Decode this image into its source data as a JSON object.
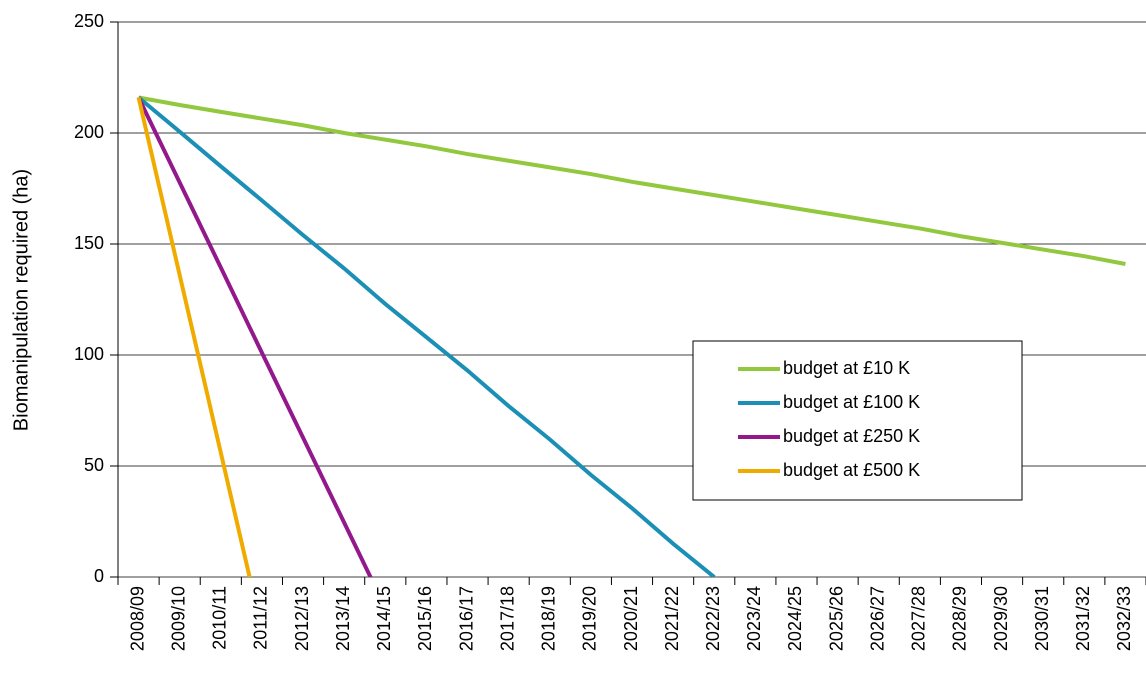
{
  "chart_data": {
    "type": "line",
    "y_label": "Biomanipulation required (ha)",
    "categories": [
      "2008/09",
      "2009/10",
      "2010/11",
      "2011/12",
      "2012/13",
      "2013/14",
      "2014/15",
      "2015/16",
      "2016/17",
      "2017/18",
      "2018/19",
      "2019/20",
      "2020/21",
      "2021/22",
      "2022/23",
      "2023/24",
      "2024/25",
      "2025/26",
      "2026/27",
      "2027/28",
      "2028/29",
      "2029/30",
      "2030/31",
      "2031/32",
      "2032/33"
    ],
    "series": [
      {
        "name": "budget at £10 K",
        "color": "#92c83e",
        "values": [
          216,
          212.6,
          209.5,
          206.5,
          203.5,
          200,
          197,
          194,
          190.5,
          187.5,
          184.5,
          181.5,
          178,
          175,
          172,
          169,
          166,
          163,
          160,
          157,
          153.5,
          150.5,
          147.5,
          144.5,
          141
        ]
      },
      {
        "name": "budget at £100 K",
        "color": "#1b8fb5",
        "values": [
          216,
          200.6,
          185,
          169.6,
          154,
          139,
          123,
          108,
          93,
          77,
          62,
          46,
          31,
          15,
          0,
          null,
          null,
          null,
          null,
          null,
          null,
          null,
          null,
          null,
          null
        ]
      },
      {
        "name": "budget at £250 K",
        "color": "#93188c",
        "values": [
          216,
          177.7,
          139.4,
          101,
          62.8,
          24.5,
          -13.8,
          null,
          null,
          null,
          null,
          null,
          null,
          null,
          null,
          null,
          null,
          null,
          null,
          null,
          null,
          null,
          null,
          null,
          null
        ]
      },
      {
        "name": "budget at £500 K",
        "color": "#f0ab00",
        "values": [
          216,
          136,
          56,
          -24,
          null,
          null,
          null,
          null,
          null,
          null,
          null,
          null,
          null,
          null,
          null,
          null,
          null,
          null,
          null,
          null,
          null,
          null,
          null,
          null,
          null
        ]
      }
    ],
    "ylim": [
      0,
      250
    ],
    "yticks": [
      0,
      50,
      100,
      150,
      200,
      250
    ],
    "grid": true,
    "legend": "right"
  }
}
